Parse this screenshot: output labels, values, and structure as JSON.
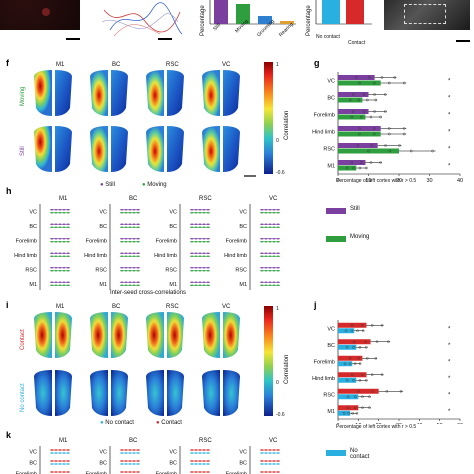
{
  "panels": {
    "f": "f",
    "g": "g",
    "h": "h",
    "i": "i",
    "j": "j",
    "k": "k"
  },
  "top": {
    "bar_axis_label": "Percentage",
    "bar_categories": [
      "Still",
      "Moving",
      "Grooming",
      "Rearing"
    ],
    "contact_axis_label": "Percentage",
    "contact_categories": [
      "No contact",
      "Contact"
    ]
  },
  "maps_f": {
    "regions": [
      "M1",
      "BC",
      "RSC",
      "VC"
    ],
    "rows": [
      "Moving",
      "Still"
    ],
    "colorbar_label": "Correlation",
    "ticks": [
      "1",
      "0",
      "-0.6"
    ]
  },
  "legend_f": {
    "still": "Still",
    "moving": "Moving"
  },
  "chart_g": {
    "categories": [
      "VC",
      "BC",
      "Forelimb",
      "Hind limb",
      "RSC",
      "M1"
    ],
    "xticks": [
      "0",
      "10",
      "20",
      "30",
      "40"
    ],
    "xlabel": "Percentage of left cortex with r > 0.5"
  },
  "chart_h": {
    "titles": [
      "M1",
      "BC",
      "RSC",
      "VC"
    ],
    "rowlabels": [
      "VC",
      "BC",
      "Forelimb",
      "Hind limb",
      "RSC",
      "M1"
    ],
    "xticks": [
      "-0.5",
      "0",
      "0.5"
    ],
    "xlabel": "Inter-seed cross-correlations",
    "legend_still": "Still",
    "legend_moving": "Moving"
  },
  "maps_i": {
    "regions": [
      "M1",
      "BC",
      "RSC",
      "VC"
    ],
    "rows": [
      "Contact",
      "No contact"
    ],
    "colorbar_label": "Correlation",
    "ticks": [
      "1",
      "0",
      "-0.6"
    ],
    "legend_nocontact": "No contact",
    "legend_contact": "Contact"
  },
  "chart_j": {
    "categories": [
      "VC",
      "BC",
      "Forelimb",
      "Hind limb",
      "RSC",
      "M1"
    ],
    "xticks": [
      "0",
      "10",
      "20",
      "30",
      "40",
      "50",
      "60"
    ],
    "xlabel": "Percentage of left cortex with r > 0.5"
  },
  "chart_k": {
    "titles": [
      "M1",
      "BC",
      "RSC",
      "VC"
    ],
    "rowlabels": [
      "VC",
      "BC",
      "Forelimb"
    ],
    "legend_nocontact": "No contact"
  },
  "colors": {
    "still": "#7b3fa0",
    "moving": "#2e9e3e",
    "contact": "#d62a2a",
    "nocontact": "#2ab0e0"
  },
  "chart_data": [
    {
      "type": "bar",
      "title": "",
      "categories": [
        "VC",
        "BC",
        "Forelimb",
        "Hind limb",
        "RSC",
        "M1"
      ],
      "series": [
        {
          "name": "Still",
          "values": [
            12,
            10,
            10,
            14,
            13,
            9
          ]
        },
        {
          "name": "Moving",
          "values": [
            14,
            8,
            9,
            14,
            20,
            6
          ]
        }
      ],
      "xlabel": "Percentage of left cortex with r > 0.5",
      "xlim": [
        0,
        40
      ]
    },
    {
      "type": "bar",
      "title": "",
      "categories": [
        "VC",
        "BC",
        "Forelimb",
        "Hind limb",
        "RSC",
        "M1"
      ],
      "series": [
        {
          "name": "Contact",
          "values": [
            14,
            16,
            12,
            14,
            20,
            10
          ]
        },
        {
          "name": "No contact",
          "values": [
            8,
            9,
            7,
            9,
            10,
            6
          ]
        }
      ],
      "xlabel": "Percentage of left cortex with r > 0.5",
      "xlim": [
        0,
        60
      ]
    }
  ]
}
